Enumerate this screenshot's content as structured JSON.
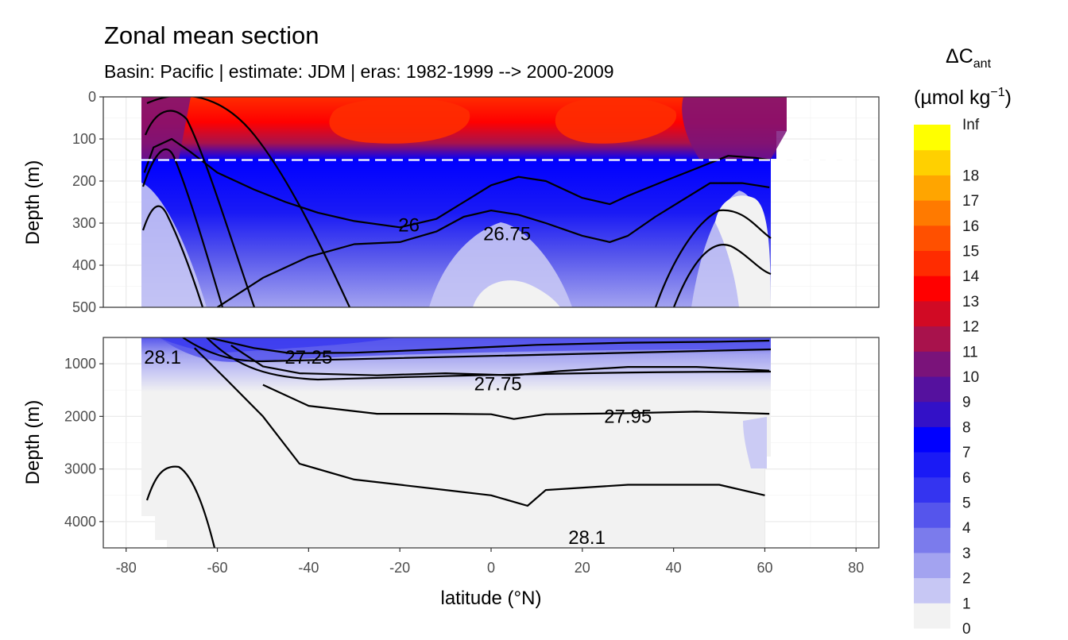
{
  "chart_data": {
    "type": "heatmap",
    "title": "Zonal mean section",
    "subtitle": "Basin: Pacific | estimate: JDM  | eras: 1982-1999 --> 2000-2009",
    "xlabel": "latitude (°N)",
    "ylabel": "Depth (m)",
    "xlim": [
      -85,
      85
    ],
    "x_ticks": [
      -80,
      -60,
      -40,
      -20,
      0,
      20,
      40,
      60,
      80
    ],
    "grid": true,
    "panels": [
      {
        "name": "upper",
        "ylim": [
          500,
          0
        ],
        "y_ticks": [
          0,
          100,
          200,
          300,
          400,
          500
        ],
        "reference_line_depth": 150,
        "contour_labels": [
          {
            "text": "26",
            "lat": -18,
            "depth": 305
          },
          {
            "text": "26.75",
            "lat": 3.5,
            "depth": 325
          }
        ],
        "contours": [
          {
            "value": 26,
            "points": [
              [
                -76,
                180
              ],
              [
                -74,
                120
              ],
              [
                -70,
                100
              ],
              [
                -66,
                130
              ],
              [
                -60,
                180
              ],
              [
                -52,
                220
              ],
              [
                -45,
                250
              ],
              [
                -38,
                275
              ],
              [
                -30,
                295
              ],
              [
                -20,
                310
              ],
              [
                -12,
                290
              ],
              [
                -6,
                250
              ],
              [
                0,
                210
              ],
              [
                6,
                190
              ],
              [
                12,
                200
              ],
              [
                20,
                240
              ],
              [
                26,
                255
              ],
              [
                30,
                235
              ],
              [
                38,
                200
              ],
              [
                45,
                170
              ],
              [
                52,
                140
              ],
              [
                58,
                145
              ],
              [
                61,
                150
              ]
            ]
          },
          {
            "value": 26.75,
            "points": [
              [
                -60,
                500
              ],
              [
                -50,
                430
              ],
              [
                -40,
                380
              ],
              [
                -30,
                350
              ],
              [
                -20,
                345
              ],
              [
                -12,
                320
              ],
              [
                -6,
                285
              ],
              [
                0,
                270
              ],
              [
                6,
                280
              ],
              [
                12,
                300
              ],
              [
                20,
                330
              ],
              [
                26,
                345
              ],
              [
                30,
                330
              ],
              [
                36,
                285
              ],
              [
                42,
                245
              ],
              [
                48,
                205
              ],
              [
                55,
                205
              ],
              [
                61,
                215
              ]
            ]
          }
        ]
      },
      {
        "name": "lower",
        "ylim": [
          4500,
          500
        ],
        "y_ticks": [
          1000,
          2000,
          3000,
          4000
        ],
        "contour_labels": [
          {
            "text": "28.1",
            "lat": -72,
            "depth": 880
          },
          {
            "text": "27.25",
            "lat": -40,
            "depth": 880
          },
          {
            "text": "27.75",
            "lat": 1.5,
            "depth": 1380
          },
          {
            "text": "27.95",
            "lat": 30,
            "depth": 2000
          },
          {
            "text": "28.1",
            "lat": 21,
            "depth": 4300
          }
        ],
        "contours": [
          {
            "value": 27.25,
            "points": [
              [
                -62,
                500
              ],
              [
                -52,
                700
              ],
              [
                -44,
                800
              ],
              [
                -30,
                790
              ],
              [
                -10,
                720
              ],
              [
                10,
                640
              ],
              [
                30,
                600
              ],
              [
                50,
                580
              ],
              [
                61,
                560
              ]
            ]
          },
          {
            "value": 27.75,
            "points": [
              [
                -57,
                650
              ],
              [
                -50,
                1050
              ],
              [
                -42,
                1180
              ],
              [
                -25,
                1220
              ],
              [
                -10,
                1180
              ],
              [
                5,
                1220
              ],
              [
                15,
                1140
              ],
              [
                30,
                1060
              ],
              [
                45,
                1060
              ],
              [
                61,
                1130
              ]
            ]
          },
          {
            "value": 27.95,
            "points": [
              [
                -50,
                1400
              ],
              [
                -40,
                1800
              ],
              [
                -25,
                1950
              ],
              [
                -10,
                1950
              ],
              [
                0,
                1960
              ],
              [
                5,
                2050
              ],
              [
                12,
                1960
              ],
              [
                30,
                1940
              ],
              [
                45,
                1910
              ],
              [
                61,
                1950
              ]
            ]
          },
          {
            "value": 28.1,
            "points": [
              [
                -65,
                700
              ],
              [
                -58,
                1300
              ],
              [
                -50,
                2000
              ],
              [
                -42,
                2900
              ],
              [
                -30,
                3200
              ],
              [
                -10,
                3400
              ],
              [
                0,
                3500
              ],
              [
                8,
                3700
              ],
              [
                12,
                3400
              ],
              [
                30,
                3300
              ],
              [
                50,
                3300
              ],
              [
                60,
                3500
              ]
            ]
          }
        ]
      }
    ],
    "legend": {
      "title": "ΔC",
      "title_subscript": "ant",
      "units": "(µmol kg",
      "units_superscript": "−1",
      "units_suffix": ")",
      "placement": "right",
      "bins": [
        {
          "label": "0",
          "color": "#f2f2f2"
        },
        {
          "label": "1",
          "color": "#c7c7f4"
        },
        {
          "label": "2",
          "color": "#a3a3f0"
        },
        {
          "label": "3",
          "color": "#7b7bec"
        },
        {
          "label": "4",
          "color": "#5555ec"
        },
        {
          "label": "5",
          "color": "#3434f0"
        },
        {
          "label": "6",
          "color": "#1a1af5"
        },
        {
          "label": "7",
          "color": "#0000ff"
        },
        {
          "label": "8",
          "color": "#3311c7"
        },
        {
          "label": "9",
          "color": "#55119e"
        },
        {
          "label": "10",
          "color": "#7a137a"
        },
        {
          "label": "11",
          "color": "#a8124c"
        },
        {
          "label": "12",
          "color": "#d10a24"
        },
        {
          "label": "13",
          "color": "#ff0000"
        },
        {
          "label": "14",
          "color": "#ff2c00"
        },
        {
          "label": "15",
          "color": "#ff5000"
        },
        {
          "label": "16",
          "color": "#ff7a00"
        },
        {
          "label": "17",
          "color": "#ffa500"
        },
        {
          "label": "18",
          "color": "#ffd000"
        },
        {
          "label": "Inf",
          "color": "#ffff00"
        }
      ]
    }
  }
}
